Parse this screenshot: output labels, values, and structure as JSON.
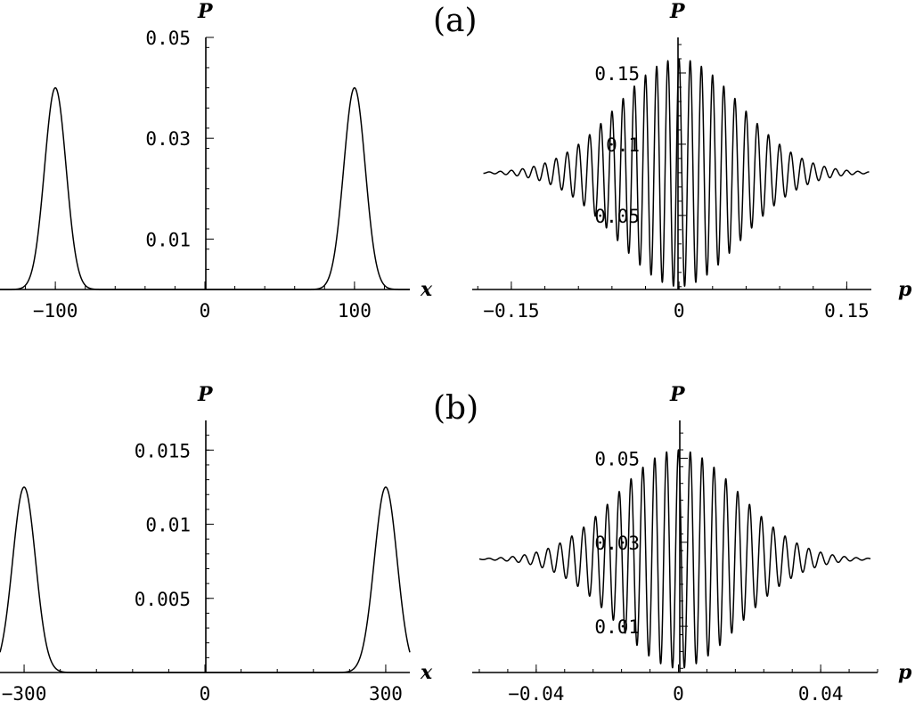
{
  "labels": {
    "a": "(a)",
    "b": "(b)"
  },
  "chart_data": [
    {
      "type": "line",
      "xlabel": "x",
      "ylabel": "P",
      "xlim": [
        -137,
        137
      ],
      "ylim": [
        0,
        0.05
      ],
      "x_ticks": [
        {
          "value": -100,
          "label": "-100"
        },
        {
          "value": 0,
          "label": "0"
        },
        {
          "value": 100,
          "label": "100"
        }
      ],
      "y_ticks": [
        {
          "value": 0.01,
          "label": "0.01"
        },
        {
          "value": 0.03,
          "label": "0.03"
        },
        {
          "value": 0.05,
          "label": "0.05"
        }
      ],
      "curve": {
        "model": "two_gaussians",
        "centers": [
          -100,
          100
        ],
        "sigma": 7.2,
        "peak": 0.04
      }
    },
    {
      "type": "line",
      "xlabel": "p",
      "ylabel": "P",
      "xlim": [
        -0.185,
        0.172
      ],
      "ylim": [
        -0.002,
        0.175
      ],
      "x_ticks": [
        {
          "value": -0.15,
          "label": "-0.15"
        },
        {
          "value": 0,
          "label": "0"
        },
        {
          "value": 0.15,
          "label": "0.15"
        }
      ],
      "y_ticks": [
        {
          "value": 0.05,
          "label": "0.05"
        },
        {
          "value": 0.1,
          "label": "0.1"
        },
        {
          "value": 0.15,
          "label": "0.15"
        }
      ],
      "curve": {
        "model": "interference",
        "baseline": 0.08,
        "x_min": -0.175,
        "x_max": 0.17,
        "frequency": 100,
        "envelope_sigma": 0.054,
        "amplitude": 0.08
      }
    },
    {
      "type": "line",
      "xlabel": "x",
      "ylabel": "P",
      "xlim": [
        -340,
        340
      ],
      "ylim": [
        0,
        0.017
      ],
      "x_ticks": [
        {
          "value": -300,
          "label": "-300"
        },
        {
          "value": 0,
          "label": "0"
        },
        {
          "value": 300,
          "label": "300"
        }
      ],
      "y_ticks": [
        {
          "value": 0.005,
          "label": "0.005"
        },
        {
          "value": 0.01,
          "label": "0.01"
        },
        {
          "value": 0.015,
          "label": "0.015"
        }
      ],
      "curve": {
        "model": "two_gaussians",
        "centers": [
          -300,
          300
        ],
        "sigma": 19,
        "peak": 0.0125
      }
    },
    {
      "type": "line",
      "xlabel": "p",
      "ylabel": "P",
      "xlim": [
        -0.058,
        0.056
      ],
      "ylim": [
        -0.001,
        0.059
      ],
      "x_ticks": [
        {
          "value": -0.04,
          "label": "-0.04"
        },
        {
          "value": 0,
          "label": "0"
        },
        {
          "value": 0.04,
          "label": "0.04"
        }
      ],
      "y_ticks": [
        {
          "value": 0.01,
          "label": "0.01"
        },
        {
          "value": 0.03,
          "label": "0.03"
        },
        {
          "value": 0.05,
          "label": "0.05"
        }
      ],
      "curve": {
        "model": "interference",
        "baseline": 0.026,
        "x_min": -0.056,
        "x_max": 0.054,
        "frequency": 300,
        "envelope_sigma": 0.017,
        "amplitude": 0.026
      }
    }
  ]
}
